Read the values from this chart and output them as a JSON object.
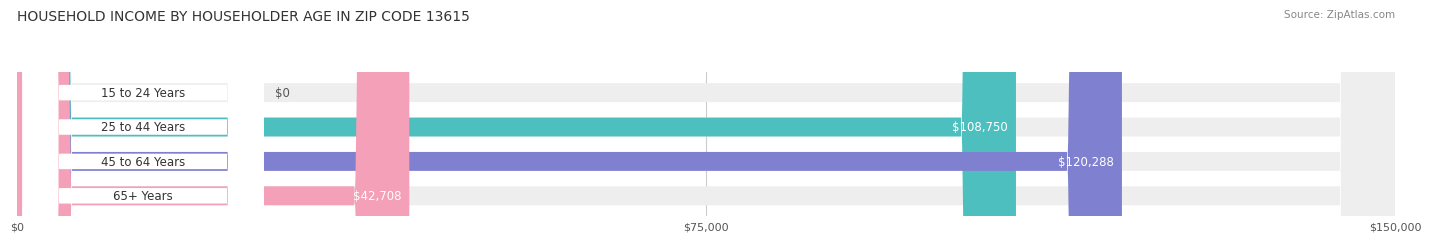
{
  "title": "HOUSEHOLD INCOME BY HOUSEHOLDER AGE IN ZIP CODE 13615",
  "source": "Source: ZipAtlas.com",
  "categories": [
    "15 to 24 Years",
    "25 to 44 Years",
    "45 to 64 Years",
    "65+ Years"
  ],
  "values": [
    0,
    108750,
    120288,
    42708
  ],
  "bar_colors": [
    "#c9a8d4",
    "#4dbfbf",
    "#8080d0",
    "#f4a0b8"
  ],
  "track_color": "#eeeeee",
  "value_labels": [
    "$0",
    "$108,750",
    "$120,288",
    "$42,708"
  ],
  "x_ticks": [
    0,
    75000,
    150000
  ],
  "x_tick_labels": [
    "$0",
    "$75,000",
    "$150,000"
  ],
  "xlim": [
    0,
    150000
  ],
  "background_color": "#ffffff",
  "bar_height": 0.55,
  "label_inside_color": "#ffffff",
  "label_outside_color": "#555555"
}
